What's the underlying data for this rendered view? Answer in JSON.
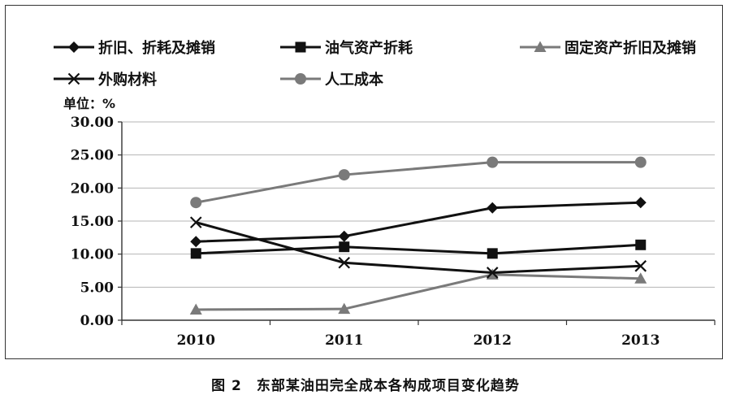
{
  "caption": "图 2　东部某油田完全成本各构成项目变化趋势",
  "chart_data": {
    "type": "line",
    "unit_label": "单位：%",
    "categories": [
      "2010",
      "2011",
      "2012",
      "2013"
    ],
    "ylim": [
      0,
      30
    ],
    "yticks": [
      "0.00",
      "5.00",
      "10.00",
      "15.00",
      "20.00",
      "25.00",
      "30.00"
    ],
    "grid": "horizontal",
    "legend_position": "top",
    "series": [
      {
        "name": "折旧、折耗及摊销",
        "values": [
          11.9,
          12.7,
          17.0,
          17.8
        ],
        "color": "#111111",
        "marker": "diamond"
      },
      {
        "name": "油气资产折耗",
        "values": [
          10.1,
          11.1,
          10.1,
          11.4
        ],
        "color": "#111111",
        "marker": "square"
      },
      {
        "name": "固定资产折旧及摊销",
        "values": [
          1.6,
          1.7,
          6.9,
          6.3
        ],
        "color": "#7a7a7a",
        "marker": "triangle"
      },
      {
        "name": "外购材料",
        "values": [
          14.8,
          8.7,
          7.2,
          8.2
        ],
        "color": "#111111",
        "marker": "x"
      },
      {
        "name": "人工成本",
        "values": [
          17.8,
          22.0,
          23.9,
          23.9
        ],
        "color": "#7a7a7a",
        "marker": "circle"
      }
    ]
  }
}
